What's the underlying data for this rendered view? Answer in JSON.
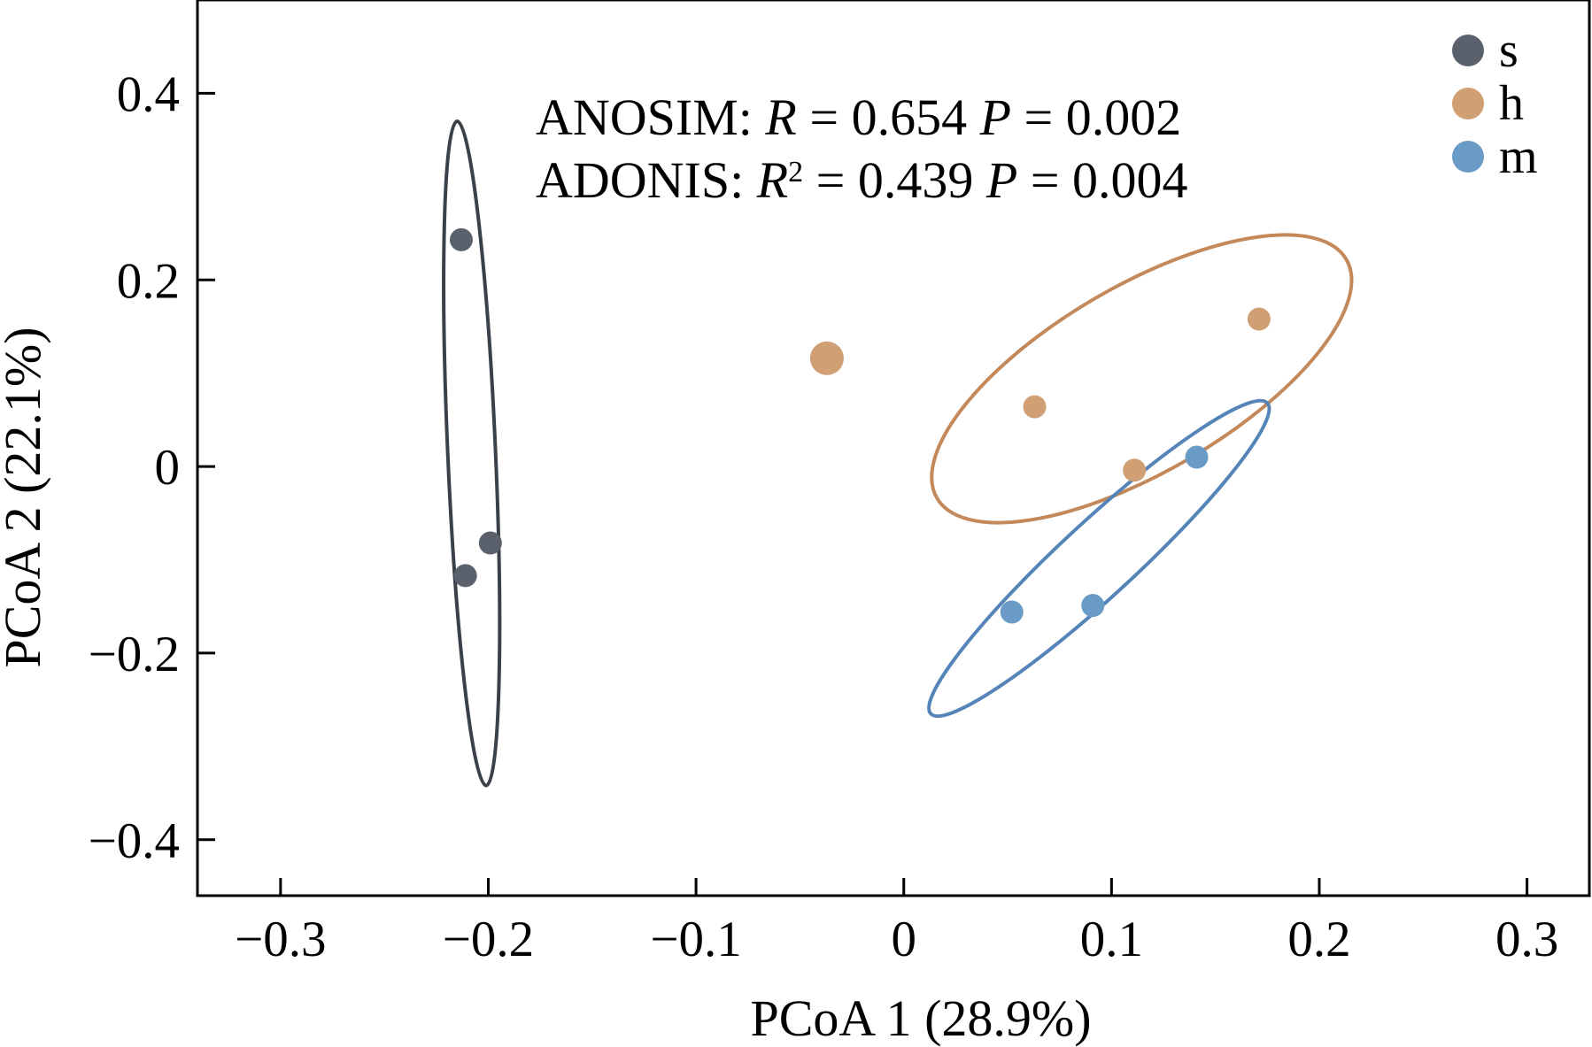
{
  "chart_data": {
    "type": "scatter",
    "xlabel": "PCoA 1 (28.9%)",
    "ylabel": "PCoA 2 (22.1%)",
    "xlim": [
      -0.34,
      0.33
    ],
    "ylim": [
      -0.46,
      0.5
    ],
    "x_ticks": [
      -0.3,
      -0.2,
      -0.1,
      0,
      0.1,
      0.2,
      0.3
    ],
    "x_tick_labels": [
      "−0.3",
      "−0.2",
      "−0.1",
      "0",
      "0.1",
      "0.2",
      "0.3"
    ],
    "y_ticks": [
      -0.4,
      -0.2,
      0,
      0.2,
      0.4
    ],
    "y_tick_labels": [
      "−0.4",
      "−0.2",
      "0",
      "0.2",
      "0.4"
    ],
    "grid": false,
    "legend_position": "top-right",
    "annotations": {
      "anosim": {
        "label": "ANOSIM: ",
        "stat": "R",
        "stat_sup": "",
        "eq1": " = 0.654 ",
        "p": "P",
        "eq2": " = 0.002"
      },
      "adonis": {
        "label": "ADONIS: ",
        "stat": "R",
        "stat_sup": "2",
        "eq1": " = 0.439 ",
        "p": "P",
        "eq2": " = 0.004"
      }
    },
    "series": [
      {
        "name": "s",
        "color": "#5a606c",
        "ellipse_color": "#3a4149",
        "points": [
          [
            -0.213,
            0.243
          ],
          [
            -0.211,
            -0.117
          ],
          [
            -0.199,
            -0.082
          ]
        ],
        "ellipse": [
          [
            -0.215,
            0.37
          ],
          [
            -0.201,
            -0.342
          ]
        ]
      },
      {
        "name": "h",
        "color": "#d09f74",
        "ellipse_color": "#c4895b",
        "points": [
          [
            -0.037,
            0.116
          ],
          [
            0.063,
            0.064
          ],
          [
            0.111,
            -0.004
          ],
          [
            0.171,
            0.158
          ]
        ],
        "ellipse": [
          [
            0.016,
            -0.034
          ],
          [
            0.213,
            0.222
          ]
        ]
      },
      {
        "name": "m",
        "color": "#6a9bc6",
        "ellipse_color": "#5585b8",
        "points": [
          [
            0.052,
            -0.156
          ],
          [
            0.091,
            -0.149
          ],
          [
            0.141,
            0.01
          ]
        ],
        "ellipse": [
          [
            0.013,
            -0.265
          ],
          [
            0.175,
            0.068
          ]
        ]
      }
    ]
  }
}
